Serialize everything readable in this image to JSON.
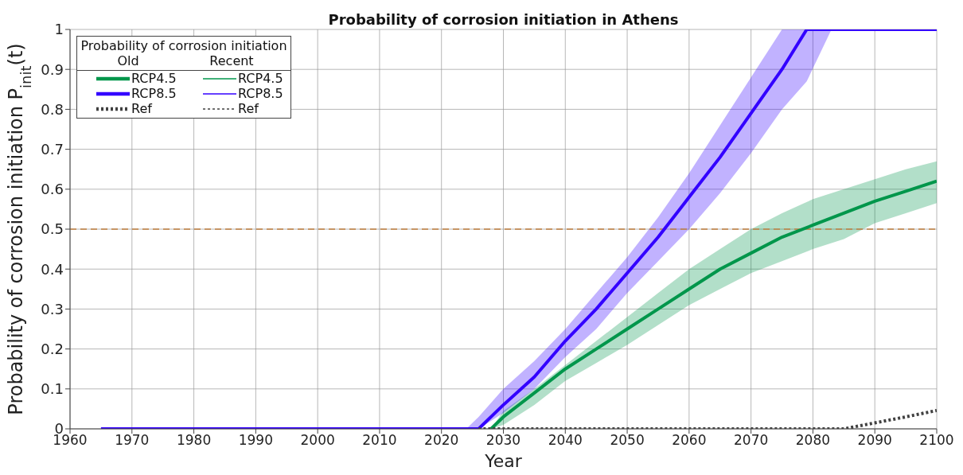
{
  "chart_data": {
    "type": "line",
    "title": "Probability of corrosion initiation in Athens",
    "xlabel": "Year",
    "ylabel": "Probability of corrosion initiation P$_{init}$(t)",
    "legend_title": "Probability of corrosion initiation",
    "annotations": [
      "Old",
      "Recent"
    ],
    "xlim": [
      1960,
      2100
    ],
    "xticks": [
      1960,
      1970,
      1980,
      1990,
      2000,
      2010,
      2020,
      2030,
      2040,
      2050,
      2060,
      2070,
      2080,
      2090,
      2100
    ],
    "ylim": [
      0,
      1
    ],
    "yticks": [
      0,
      0.1,
      0.2,
      0.3,
      0.4,
      0.5,
      0.6,
      0.7,
      0.8,
      0.9,
      1
    ],
    "grid": true,
    "legend": "top left",
    "marker": "none",
    "ref_lines": [
      {
        "axis": "y",
        "value": 0.5,
        "label": null,
        "color": "#c08040",
        "line_style": "dashed"
      }
    ],
    "series": [
      {
        "name": "RCP4.5",
        "color": "#00964b",
        "x": [
          2028,
          2030,
          2035,
          2040,
          2045,
          2050,
          2055,
          2060,
          2065,
          2070,
          2075,
          2080,
          2085,
          2090,
          2095,
          2100
        ],
        "values": [
          0,
          0.03,
          0.09,
          0.15,
          0.2,
          0.25,
          0.3,
          0.35,
          0.4,
          0.44,
          0.48,
          0.51,
          0.54,
          0.57,
          0.595,
          0.62
        ],
        "upper": [
          0,
          0.045,
          0.1,
          0.16,
          0.22,
          0.28,
          0.34,
          0.4,
          0.45,
          0.5,
          0.54,
          0.575,
          0.6,
          0.625,
          0.65,
          0.67
        ],
        "lower": [
          0,
          0.01,
          0.06,
          0.12,
          0.165,
          0.21,
          0.26,
          0.31,
          0.35,
          0.39,
          0.42,
          0.45,
          0.475,
          0.515,
          0.54,
          0.565
        ]
      },
      {
        "name": "RCP8.5",
        "color": "#3300ff",
        "x": [
          1965,
          2024,
          2026,
          2030,
          2035,
          2040,
          2045,
          2050,
          2055,
          2060,
          2065,
          2070,
          2075,
          2079,
          2083,
          2100
        ],
        "values": [
          0,
          0,
          0,
          0.06,
          0.13,
          0.22,
          0.3,
          0.39,
          0.48,
          0.58,
          0.68,
          0.79,
          0.9,
          1,
          1,
          1
        ],
        "upper": [
          0,
          0,
          0.03,
          0.1,
          0.17,
          0.25,
          0.34,
          0.43,
          0.53,
          0.64,
          0.76,
          0.88,
          1,
          1,
          1,
          1
        ],
        "lower": [
          0,
          0,
          0,
          0.04,
          0.1,
          0.18,
          0.25,
          0.34,
          0.42,
          0.5,
          0.59,
          0.69,
          0.8,
          0.87,
          1,
          1
        ]
      },
      {
        "name": "Ref",
        "color": "#404040",
        "line_style": "dotted",
        "x": [
          2026,
          2085,
          2090,
          2095,
          2100
        ],
        "values": [
          0,
          0,
          0.015,
          0.03,
          0.046
        ]
      },
      {
        "name": "RCP4.5",
        "color": "#00964b"
      },
      {
        "name": "RCP8.5",
        "color": "#3300ff"
      },
      {
        "name": "Ref",
        "color": "#404040",
        "line_style": "dotted"
      }
    ]
  }
}
